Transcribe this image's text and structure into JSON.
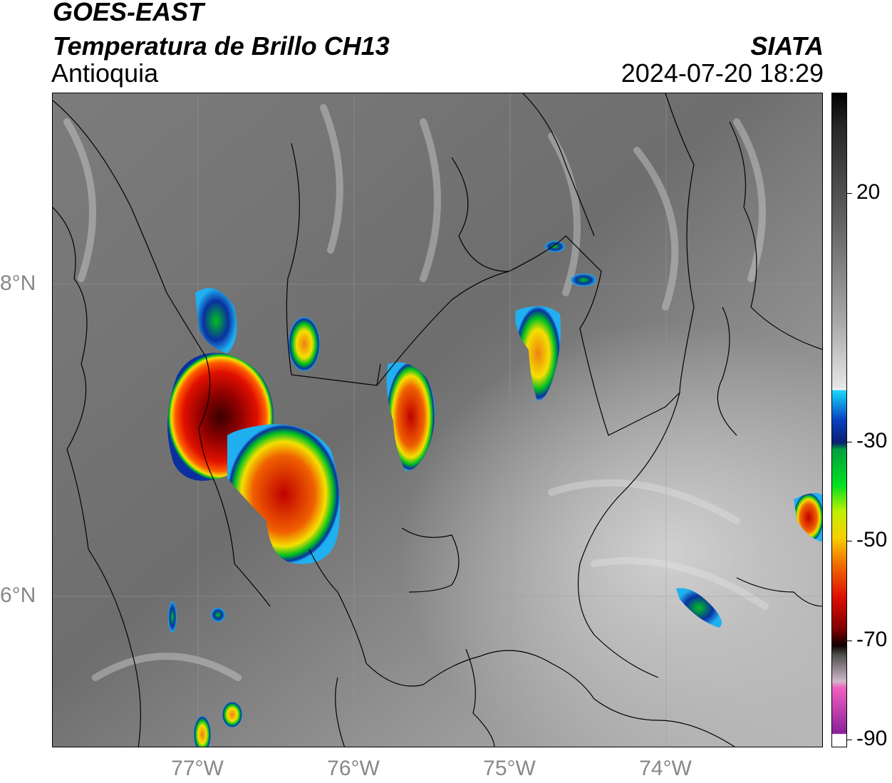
{
  "header": {
    "satellite": "GOES-EAST",
    "product": "Temperatura de Brillo CH13",
    "region": "Antioquia",
    "agency": "SIATA",
    "datetime": "2024-07-20 18:29"
  },
  "map": {
    "lon_ticks": [
      "77°W",
      "76°W",
      "75°W",
      "74°W"
    ],
    "lat_ticks": [
      "8°N",
      "6°N"
    ],
    "lon_range": [
      -77.95,
      -73.0
    ],
    "lat_range": [
      5.0,
      9.2
    ]
  },
  "colorbar": {
    "ticks": [
      "20",
      "-30",
      "-50",
      "-70",
      "-90"
    ],
    "tick_values": [
      20,
      -30,
      -50,
      -70,
      -90
    ],
    "range": [
      -90,
      40
    ]
  },
  "colors": {
    "cloud_cold": "#8b0000",
    "cloud_red": "#e01000",
    "cloud_orange": "#f08010",
    "cloud_yellow": "#f4e000",
    "cloud_green": "#00c020",
    "cloud_blue": "#0a30a0",
    "cloud_cyan": "#20b0f0",
    "background_gray": "#8a8a8a"
  }
}
